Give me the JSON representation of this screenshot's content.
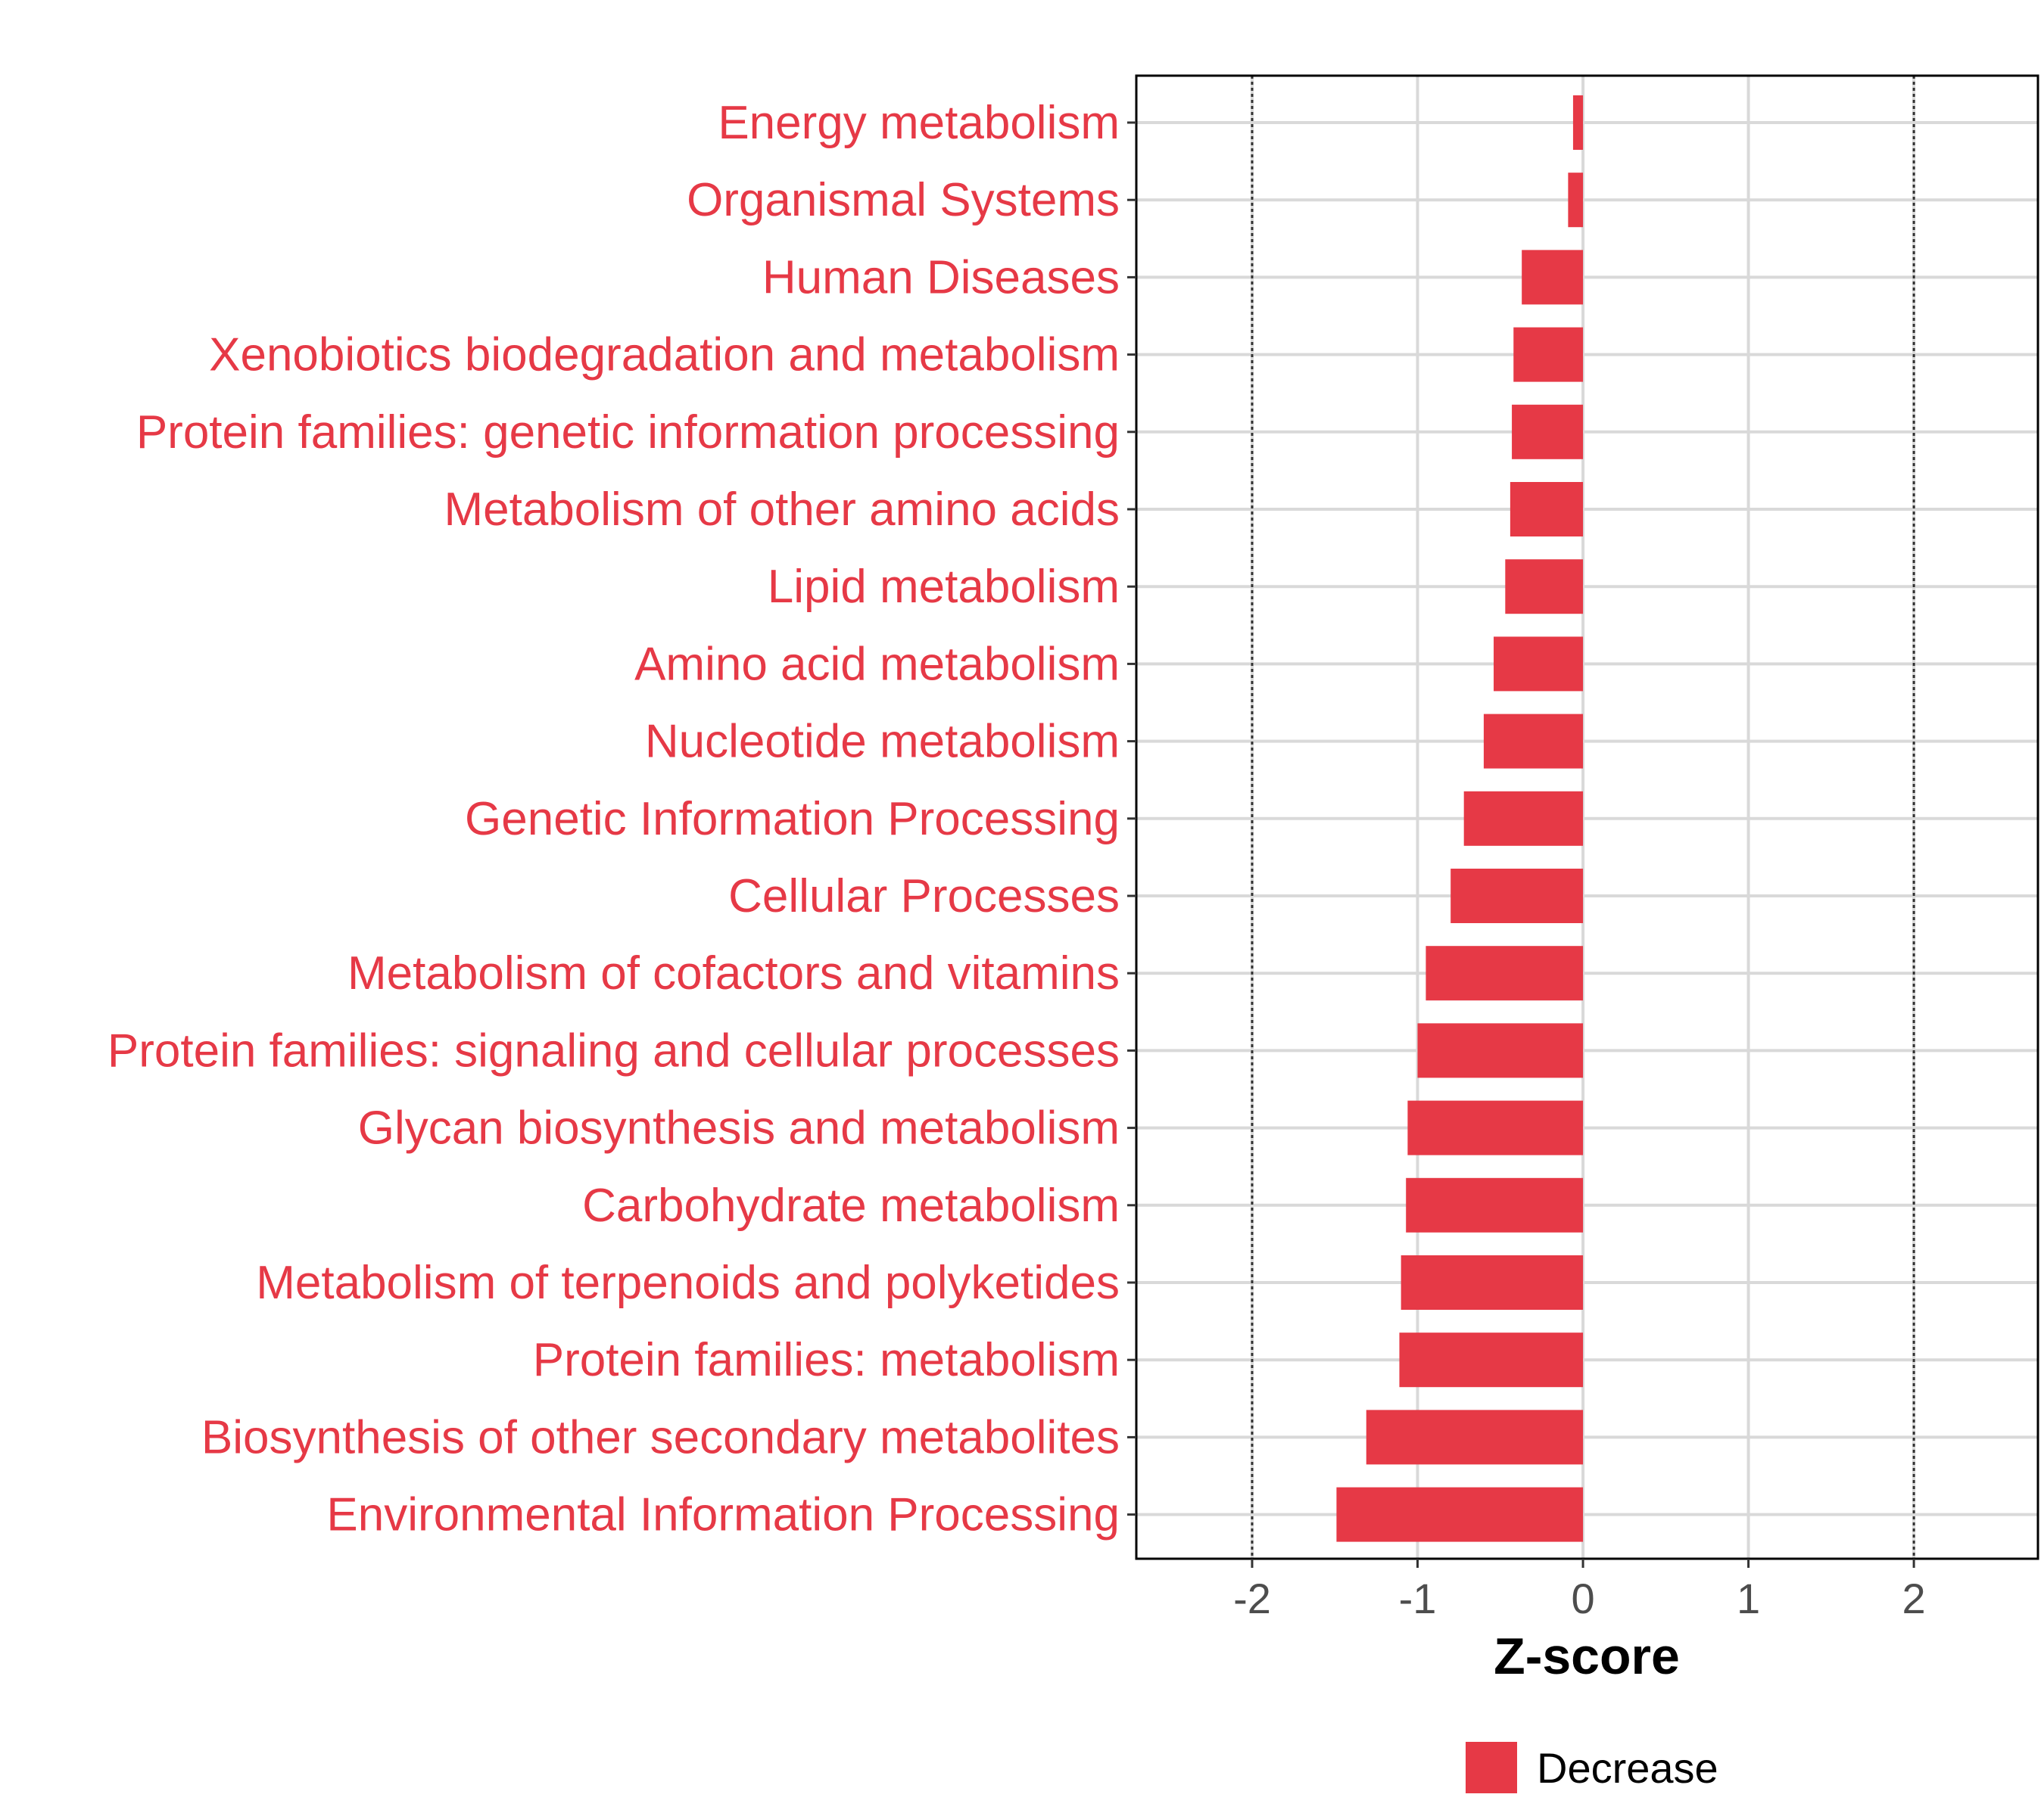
{
  "chart_data": {
    "type": "bar",
    "orientation": "horizontal",
    "categories": [
      "Energy metabolism",
      "Organismal Systems",
      "Human Diseases",
      "Xenobiotics biodegradation and metabolism",
      "Protein families: genetic information processing",
      "Metabolism of other amino acids",
      "Lipid metabolism",
      "Amino acid metabolism",
      "Nucleotide metabolism",
      "Genetic Information Processing",
      "Cellular Processes",
      "Metabolism of cofactors and vitamins",
      "Protein families: signaling and cellular processes",
      "Glycan biosynthesis and metabolism",
      "Carbohydrate metabolism",
      "Metabolism of terpenoids and polyketides",
      "Protein families: metabolism",
      "Biosynthesis of other secondary metabolites",
      "Environmental Information Processing"
    ],
    "values": [
      -0.06,
      -0.09,
      -0.37,
      -0.42,
      -0.43,
      -0.44,
      -0.47,
      -0.54,
      -0.6,
      -0.72,
      -0.8,
      -0.95,
      -1.0,
      -1.06,
      -1.07,
      -1.1,
      -1.11,
      -1.31,
      -1.49
    ],
    "series": [
      {
        "name": "Decrease",
        "color": "#e63946"
      }
    ],
    "xlabel": "Z-score",
    "ylabel": "",
    "xlim": [
      -2.7,
      2.75
    ],
    "xticks": [
      -2,
      -1,
      0,
      1,
      2
    ],
    "xtick_labels": [
      "-2",
      "-1",
      "0",
      "1",
      "2"
    ],
    "reference_lines": [
      -2,
      2
    ],
    "grid": true,
    "legend": {
      "position": "bottom",
      "entries": [
        "Decrease"
      ]
    },
    "label_color": "#e63946"
  }
}
